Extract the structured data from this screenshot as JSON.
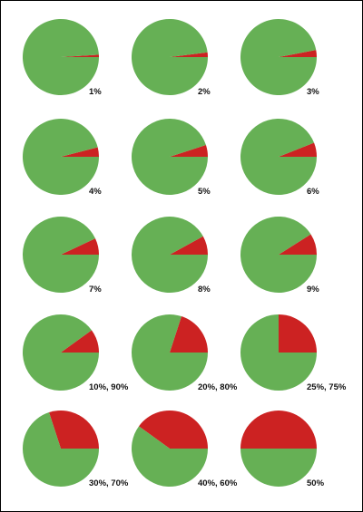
{
  "chart_data": [
    {
      "type": "pie",
      "label": "1%",
      "slices": [
        {
          "value": 1,
          "color": "#cc2222"
        },
        {
          "value": 99,
          "color": "#66b055"
        }
      ]
    },
    {
      "type": "pie",
      "label": "2%",
      "slices": [
        {
          "value": 2,
          "color": "#cc2222"
        },
        {
          "value": 98,
          "color": "#66b055"
        }
      ]
    },
    {
      "type": "pie",
      "label": "3%",
      "slices": [
        {
          "value": 3,
          "color": "#cc2222"
        },
        {
          "value": 97,
          "color": "#66b055"
        }
      ]
    },
    {
      "type": "pie",
      "label": "4%",
      "slices": [
        {
          "value": 4,
          "color": "#cc2222"
        },
        {
          "value": 96,
          "color": "#66b055"
        }
      ]
    },
    {
      "type": "pie",
      "label": "5%",
      "slices": [
        {
          "value": 5,
          "color": "#cc2222"
        },
        {
          "value": 95,
          "color": "#66b055"
        }
      ]
    },
    {
      "type": "pie",
      "label": "6%",
      "slices": [
        {
          "value": 6,
          "color": "#cc2222"
        },
        {
          "value": 94,
          "color": "#66b055"
        }
      ]
    },
    {
      "type": "pie",
      "label": "7%",
      "slices": [
        {
          "value": 7,
          "color": "#cc2222"
        },
        {
          "value": 93,
          "color": "#66b055"
        }
      ]
    },
    {
      "type": "pie",
      "label": "8%",
      "slices": [
        {
          "value": 8,
          "color": "#cc2222"
        },
        {
          "value": 92,
          "color": "#66b055"
        }
      ]
    },
    {
      "type": "pie",
      "label": "9%",
      "slices": [
        {
          "value": 9,
          "color": "#cc2222"
        },
        {
          "value": 91,
          "color": "#66b055"
        }
      ]
    },
    {
      "type": "pie",
      "label": "10%, 90%",
      "slices": [
        {
          "value": 10,
          "color": "#cc2222"
        },
        {
          "value": 90,
          "color": "#66b055"
        }
      ]
    },
    {
      "type": "pie",
      "label": "20%, 80%",
      "slices": [
        {
          "value": 20,
          "color": "#cc2222"
        },
        {
          "value": 80,
          "color": "#66b055"
        }
      ]
    },
    {
      "type": "pie",
      "label": "25%, 75%",
      "slices": [
        {
          "value": 25,
          "color": "#cc2222"
        },
        {
          "value": 75,
          "color": "#66b055"
        }
      ]
    },
    {
      "type": "pie",
      "label": "30%, 70%",
      "slices": [
        {
          "value": 30,
          "color": "#cc2222"
        },
        {
          "value": 70,
          "color": "#66b055"
        }
      ]
    },
    {
      "type": "pie",
      "label": "40%, 60%",
      "slices": [
        {
          "value": 40,
          "color": "#cc2222"
        },
        {
          "value": 60,
          "color": "#66b055"
        }
      ]
    },
    {
      "type": "pie",
      "label": "50%",
      "slices": [
        {
          "value": 50,
          "color": "#cc2222"
        },
        {
          "value": 50,
          "color": "#66b055"
        }
      ]
    }
  ]
}
